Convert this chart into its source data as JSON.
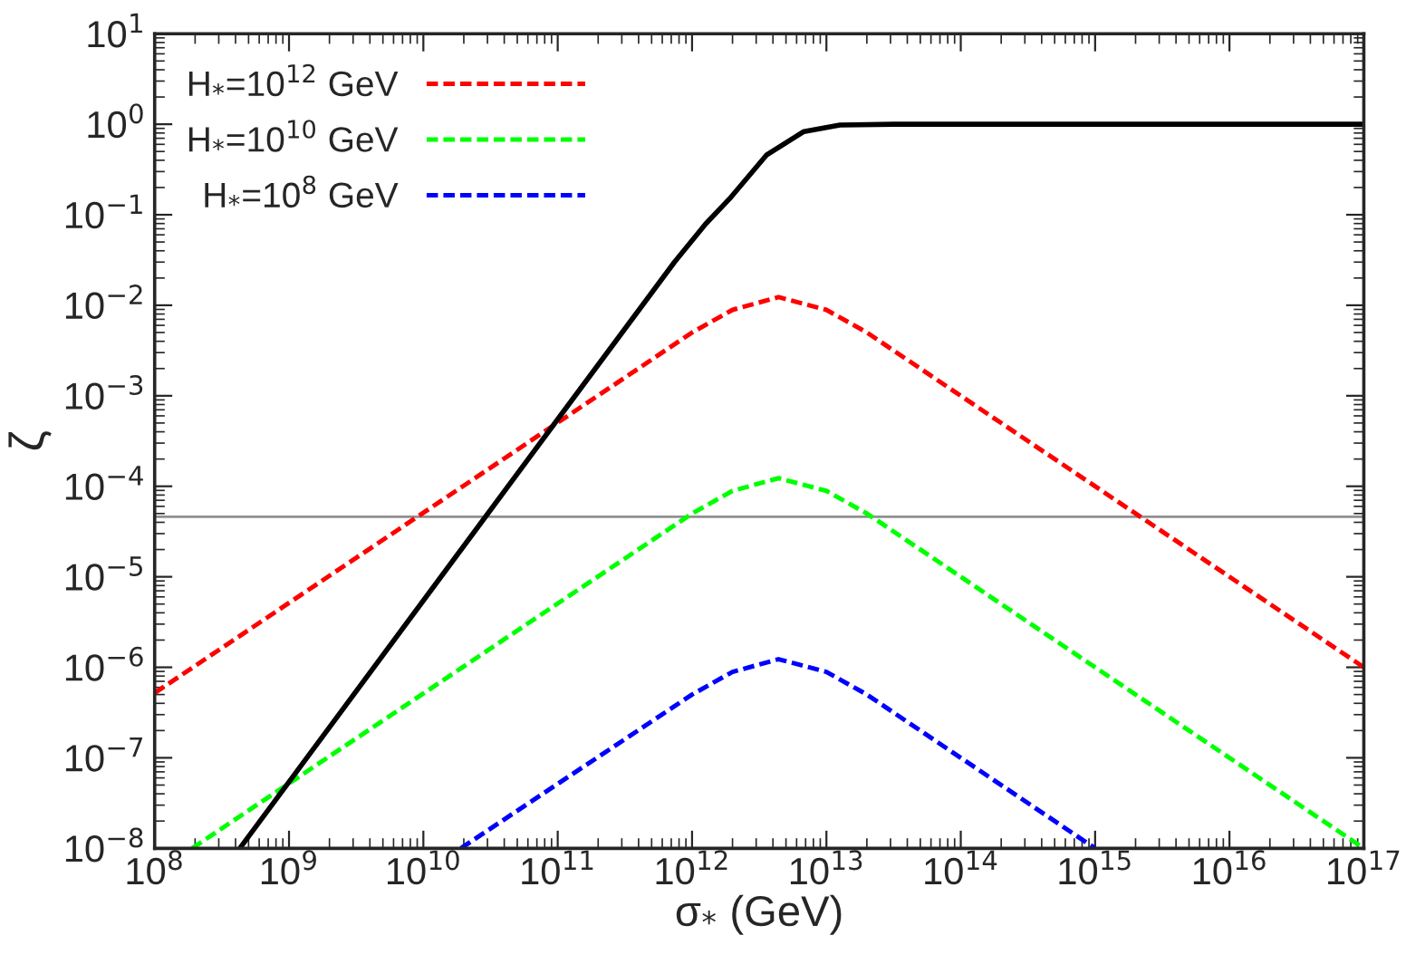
{
  "chart_data": {
    "type": "line",
    "xlabel": "σ$_{*}$ (GeV)",
    "ylabel": "ζ",
    "log": "xy",
    "legend": "top left",
    "grid": false,
    "xlim": [
      100000000.0,
      1e+17
    ],
    "ylim": [
      1e-08,
      10
    ],
    "xticks": [
      {
        "value": 100000000.0,
        "label": "10$^{8}$"
      },
      {
        "value": 1000000000.0,
        "label": "10$^{9}$"
      },
      {
        "value": 10000000000.0,
        "label": "10$^{10}$"
      },
      {
        "value": 100000000000.0,
        "label": "10$^{11}$"
      },
      {
        "value": 1000000000000.0,
        "label": "10$^{12}$"
      },
      {
        "value": 10000000000000.0,
        "label": "10$^{13}$"
      },
      {
        "value": 100000000000000.0,
        "label": "10$^{14}$"
      },
      {
        "value": 1000000000000000.0,
        "label": "10$^{15}$"
      },
      {
        "value": 1e+16,
        "label": "10$^{16}$"
      },
      {
        "value": 1e+17,
        "label": "10$^{17}$"
      }
    ],
    "yticks": [
      {
        "value": 1e-08,
        "label": "10$^{−8}$"
      },
      {
        "value": 1e-07,
        "label": "10$^{−7}$"
      },
      {
        "value": 1e-06,
        "label": "10$^{−6}$"
      },
      {
        "value": 1e-05,
        "label": "10$^{−5}$"
      },
      {
        "value": 0.0001,
        "label": "10$^{−4}$"
      },
      {
        "value": 0.001,
        "label": "10$^{−3}$"
      },
      {
        "value": 0.01,
        "label": "10$^{−2}$"
      },
      {
        "value": 0.1,
        "label": "10$^{−1}$"
      },
      {
        "value": 1,
        "label": "10$^{0}$"
      },
      {
        "value": 10,
        "label": "10$^{1}$"
      }
    ],
    "ref_lines": [
      {
        "axis": "y",
        "value": 4.6e-05,
        "color": "#909090",
        "line_style": "solid"
      }
    ],
    "series": [
      {
        "name": "H$_{*}$=10$^{12}$ GeV",
        "color": "#ff0000",
        "line_style": "dashed",
        "x": [
          100000000.0,
          1000000000000.0,
          2000000000000.0,
          4400000000000.0,
          10000000000000.0,
          20000000000000.0,
          1e+17
        ],
        "values": [
          5.2e-07,
          0.005,
          0.0089,
          0.0123,
          0.0089,
          0.005,
          1e-06
        ]
      },
      {
        "name": "H$_{*}$=10$^{10}$ GeV",
        "color": "#00ff00",
        "line_style": "dashed",
        "x": [
          190000000.0,
          1000000000000.0,
          2000000000000.0,
          4400000000000.0,
          10000000000000.0,
          20000000000000.0,
          1e+17
        ],
        "values": [
          1e-08,
          5e-05,
          8.9e-05,
          0.000123,
          8.9e-05,
          5e-05,
          1e-08
        ]
      },
      {
        "name": "H$_{*}$=10$^{8}$ GeV",
        "color": "#0000ff",
        "line_style": "dashed",
        "x": [
          19000000000.0,
          1000000000000.0,
          2000000000000.0,
          4400000000000.0,
          10000000000000.0,
          20000000000000.0,
          1000000000000000.0
        ],
        "values": [
          1e-08,
          5e-07,
          8.9e-07,
          1.23e-06,
          8.9e-07,
          5e-07,
          1e-08
        ]
      },
      {
        "color": "#000000",
        "line_style": "solid",
        "x": [
          430000000.0,
          100000000000.0,
          740000000000.0,
          1260000000000.0,
          1900000000000.0,
          3600000000000.0,
          6800000000000.0,
          12600000000000.0,
          32000000000000.0,
          1e+17
        ],
        "values": [
          1e-08,
          0.00055,
          0.03,
          0.079,
          0.15,
          0.46,
          0.83,
          0.98,
          1,
          1
        ]
      }
    ]
  }
}
